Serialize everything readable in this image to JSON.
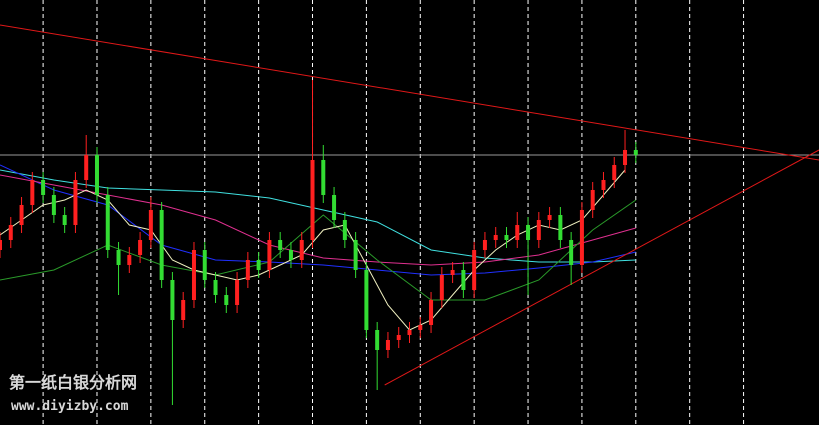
{
  "chart_data": {
    "type": "candlestick",
    "xlim": [
      0,
      152
    ],
    "ylim": [
      0,
      425
    ],
    "xticks": [
      8,
      18,
      28,
      38,
      48,
      58,
      68,
      78,
      88,
      98,
      108,
      118,
      128,
      138
    ],
    "grid": true,
    "up_color": "#ff2020",
    "down_color": "#33dd33",
    "hline": {
      "value": 270,
      "color": "#9a9a9a"
    },
    "x": [
      0,
      2,
      4,
      6,
      8,
      10,
      12,
      14,
      16,
      18,
      20,
      22,
      24,
      26,
      28,
      30,
      32,
      34,
      36,
      38,
      40,
      42,
      44,
      46,
      48,
      50,
      52,
      54,
      56,
      58,
      60,
      62,
      64,
      66,
      68,
      70,
      72,
      74,
      76,
      78,
      80,
      82,
      84,
      86,
      88,
      90,
      92,
      94,
      96,
      98,
      100,
      102,
      104,
      106,
      108,
      110,
      112,
      114,
      116,
      118
    ],
    "open": [
      175,
      185,
      200,
      220,
      245,
      230,
      210,
      200,
      245,
      270,
      230,
      175,
      160,
      170,
      185,
      215,
      145,
      105,
      125,
      175,
      145,
      130,
      120,
      145,
      165,
      155,
      185,
      175,
      165,
      185,
      265,
      230,
      205,
      185,
      155,
      95,
      75,
      85,
      90,
      95,
      100,
      125,
      150,
      155,
      135,
      175,
      185,
      190,
      185,
      200,
      185,
      205,
      210,
      185,
      160,
      215,
      235,
      245,
      260,
      275
    ],
    "high": [
      193,
      208,
      228,
      253,
      253,
      238,
      218,
      253,
      290,
      278,
      238,
      183,
      178,
      193,
      228,
      223,
      153,
      133,
      183,
      183,
      153,
      138,
      153,
      173,
      173,
      193,
      193,
      183,
      193,
      345,
      280,
      238,
      213,
      193,
      163,
      103,
      93,
      98,
      103,
      108,
      133,
      158,
      163,
      163,
      183,
      193,
      198,
      198,
      213,
      208,
      213,
      218,
      218,
      193,
      223,
      243,
      253,
      268,
      295,
      283
    ],
    "low": [
      167,
      177,
      192,
      212,
      222,
      202,
      192,
      192,
      237,
      222,
      167,
      130,
      152,
      162,
      177,
      137,
      20,
      97,
      117,
      137,
      122,
      112,
      112,
      137,
      147,
      147,
      167,
      157,
      157,
      177,
      222,
      197,
      177,
      147,
      87,
      35,
      67,
      77,
      82,
      87,
      92,
      117,
      142,
      127,
      127,
      167,
      177,
      177,
      177,
      130,
      177,
      197,
      177,
      140,
      152,
      207,
      227,
      237,
      252,
      262
    ],
    "close": [
      185,
      200,
      220,
      245,
      230,
      210,
      200,
      245,
      270,
      230,
      175,
      160,
      170,
      185,
      215,
      145,
      105,
      125,
      175,
      145,
      130,
      120,
      145,
      165,
      155,
      185,
      175,
      165,
      185,
      265,
      230,
      205,
      185,
      155,
      95,
      75,
      85,
      90,
      95,
      100,
      125,
      150,
      155,
      135,
      175,
      185,
      190,
      185,
      200,
      185,
      205,
      210,
      185,
      160,
      215,
      235,
      245,
      260,
      275,
      270
    ],
    "series": [
      {
        "color": "#40e0e0",
        "x": [
          0,
          10,
          20,
          30,
          40,
          50,
          60,
          70,
          80,
          90,
          100,
          110,
          118
        ],
        "values": [
          255,
          245,
          237,
          235,
          233,
          227,
          215,
          203,
          175,
          167,
          163,
          163,
          165
        ]
      },
      {
        "color": "#2030ff",
        "x": [
          0,
          10,
          20,
          30,
          40,
          50,
          60,
          70,
          80,
          90,
          100,
          110,
          118
        ],
        "values": [
          260,
          235,
          220,
          180,
          165,
          163,
          160,
          155,
          150,
          152,
          157,
          163,
          173
        ]
      },
      {
        "color": "#e03090",
        "x": [
          0,
          10,
          20,
          30,
          40,
          50,
          60,
          70,
          80,
          90,
          100,
          110,
          118
        ],
        "values": [
          250,
          240,
          230,
          220,
          205,
          180,
          167,
          163,
          160,
          163,
          170,
          185,
          197
        ]
      },
      {
        "color": "#2a9a2a",
        "x": [
          0,
          10,
          20,
          30,
          40,
          50,
          60,
          70,
          80,
          90,
          100,
          110,
          118
        ],
        "values": [
          145,
          155,
          180,
          160,
          150,
          163,
          210,
          165,
          125,
          125,
          145,
          195,
          225
        ]
      },
      {
        "color": "#f0f0c0",
        "x": [
          0,
          4,
          8,
          12,
          16,
          20,
          24,
          28,
          32,
          36,
          40,
          44,
          48,
          52,
          56,
          60,
          64,
          68,
          72,
          76,
          80,
          84,
          88,
          92,
          96,
          100,
          104,
          108,
          112,
          116
        ],
        "values": [
          190,
          205,
          220,
          225,
          235,
          225,
          200,
          195,
          165,
          155,
          150,
          145,
          150,
          160,
          170,
          195,
          200,
          160,
          120,
          95,
          105,
          130,
          155,
          175,
          190,
          200,
          195,
          205,
          230,
          255
        ]
      },
      {
        "color": "#e01818",
        "x": [
          0,
          152
        ],
        "values": [
          400,
          265
        ]
      },
      {
        "color": "#e01818",
        "x": [
          71.4,
          152
        ],
        "values": [
          40,
          275
        ]
      }
    ]
  },
  "watermark": {
    "title": "第一纸白银分析网",
    "url": "www.diyizby.com"
  }
}
